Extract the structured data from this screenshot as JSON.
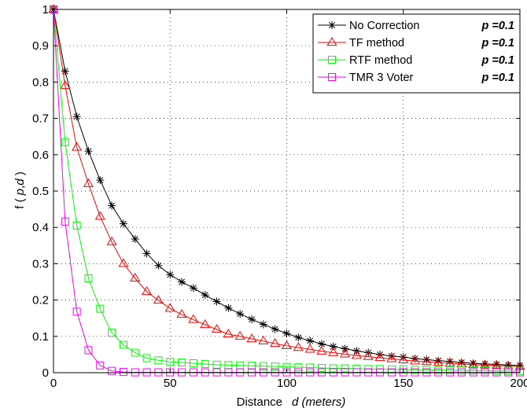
{
  "chart_data": {
    "type": "line",
    "xlim": [
      0,
      200
    ],
    "ylim": [
      0,
      1
    ],
    "x_ticks": [
      "0",
      "50",
      "100",
      "150",
      "200"
    ],
    "y_ticks": [
      "0",
      "0.1",
      "0.2",
      "0.3",
      "0.4",
      "0.5",
      "0.6",
      "0.7",
      "0.8",
      "0.9",
      "1"
    ],
    "grid": true,
    "legend_position": "top-right",
    "xlabel_parts": [
      "Distance",
      "d (meters)"
    ],
    "ylabel_parts": [
      "f ( ",
      "p",
      ",",
      "d",
      " )"
    ],
    "x": [
      0,
      5,
      10,
      15,
      20,
      25,
      30,
      35,
      40,
      45,
      50,
      55,
      60,
      65,
      70,
      75,
      80,
      85,
      90,
      95,
      100,
      105,
      110,
      115,
      120,
      125,
      130,
      135,
      140,
      145,
      150,
      155,
      160,
      165,
      170,
      175,
      180,
      185,
      190,
      195,
      200
    ],
    "series": [
      {
        "legend_label": "No Correction",
        "legend_p": "p =0.1",
        "color": "#000000",
        "marker": "asterisk",
        "values": [
          1.0,
          0.83,
          0.705,
          0.61,
          0.53,
          0.46,
          0.41,
          0.368,
          0.328,
          0.295,
          0.27,
          0.25,
          0.233,
          0.214,
          0.196,
          0.178,
          0.162,
          0.147,
          0.133,
          0.12,
          0.108,
          0.097,
          0.088,
          0.079,
          0.072,
          0.066,
          0.06,
          0.055,
          0.05,
          0.046,
          0.043,
          0.039,
          0.036,
          0.033,
          0.031,
          0.028,
          0.026,
          0.024,
          0.023,
          0.021,
          0.02
        ]
      },
      {
        "legend_label": "TF method",
        "legend_p": "p =0.1",
        "color": "#ff0000",
        "marker": "triangle",
        "values": [
          1.0,
          0.79,
          0.62,
          0.52,
          0.43,
          0.36,
          0.3,
          0.26,
          0.223,
          0.199,
          0.177,
          0.16,
          0.146,
          0.132,
          0.119,
          0.106,
          0.1,
          0.093,
          0.087,
          0.08,
          0.074,
          0.069,
          0.064,
          0.059,
          0.055,
          0.051,
          0.047,
          0.044,
          0.041,
          0.038,
          0.035,
          0.032,
          0.03,
          0.028,
          0.026,
          0.024,
          0.022,
          0.021,
          0.02,
          0.018,
          0.017
        ]
      },
      {
        "legend_label": "RTF method",
        "legend_p": "p =0.1",
        "color": "#00ff00",
        "marker": "square",
        "values": [
          1.0,
          0.635,
          0.405,
          0.26,
          0.176,
          0.11,
          0.077,
          0.055,
          0.04,
          0.034,
          0.03,
          0.028,
          0.026,
          0.024,
          0.022,
          0.021,
          0.02,
          0.019,
          0.018,
          0.017,
          0.016,
          0.015,
          0.014,
          0.013,
          0.012,
          0.012,
          0.011,
          0.01,
          0.01,
          0.009,
          0.009,
          0.008,
          0.008,
          0.007,
          0.007,
          0.006,
          0.006,
          0.006,
          0.005,
          0.005,
          0.005
        ]
      },
      {
        "legend_label": "TMR 3 Voter",
        "legend_p": "p =0.1",
        "color": "#ff00ff",
        "marker": "square",
        "values": [
          1.0,
          0.416,
          0.168,
          0.062,
          0.02,
          0.005,
          0.002,
          0.001,
          0.001,
          0.001,
          0.001,
          0.001,
          0.001,
          0.001,
          0.001,
          0.001,
          0.001,
          0.001,
          0.001,
          0.001,
          0.001,
          0.001,
          0.001,
          0.001,
          0.001,
          0.001,
          0.001,
          0.001,
          0.001,
          0.001,
          0.001,
          0.001,
          0.001,
          0.001,
          0.001,
          0.001,
          0.001,
          0.001,
          0.001,
          0.001,
          0.001
        ]
      }
    ]
  }
}
